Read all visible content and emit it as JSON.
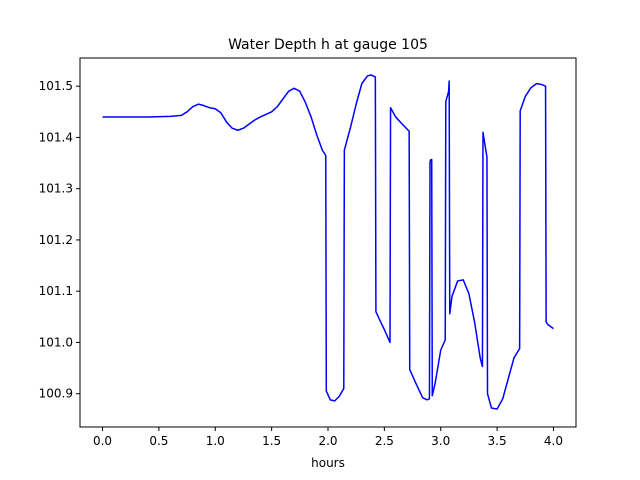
{
  "chart_data": {
    "type": "line",
    "title": "Water Depth h at gauge 105",
    "xlabel": "hours",
    "ylabel": "",
    "xlim": [
      -0.2,
      4.2
    ],
    "ylim": [
      100.835,
      101.555
    ],
    "xticks": [
      0.0,
      0.5,
      1.0,
      1.5,
      2.0,
      2.5,
      3.0,
      3.5,
      4.0
    ],
    "xtick_labels": [
      "0.0",
      "0.5",
      "1.0",
      "1.5",
      "2.0",
      "2.5",
      "3.0",
      "3.5",
      "4.0"
    ],
    "yticks": [
      100.9,
      101.0,
      101.1,
      101.2,
      101.3,
      101.4,
      101.5
    ],
    "ytick_labels": [
      "100.9",
      "101.0",
      "101.1",
      "101.2",
      "101.3",
      "101.4",
      "101.5"
    ],
    "grid": false,
    "series": [
      {
        "color": "#0000ff",
        "x": [
          0.0,
          0.2,
          0.4,
          0.6,
          0.7,
          0.75,
          0.8,
          0.85,
          0.9,
          0.95,
          1.0,
          1.05,
          1.1,
          1.15,
          1.2,
          1.25,
          1.3,
          1.35,
          1.4,
          1.5,
          1.55,
          1.6,
          1.65,
          1.7,
          1.75,
          1.8,
          1.85,
          1.9,
          1.95,
          1.98,
          1.985,
          2.02,
          2.06,
          2.1,
          2.14,
          2.145,
          2.2,
          2.25,
          2.3,
          2.35,
          2.38,
          2.4,
          2.42,
          2.425,
          2.45,
          2.5,
          2.55,
          2.555,
          2.6,
          2.65,
          2.72,
          2.725,
          2.78,
          2.84,
          2.88,
          2.9,
          2.905,
          2.91,
          2.92,
          2.925,
          2.95,
          3.0,
          3.04,
          3.045,
          3.07,
          3.075,
          3.08,
          3.1,
          3.15,
          3.2,
          3.25,
          3.3,
          3.35,
          3.37,
          3.375,
          3.4,
          3.41,
          3.415,
          3.45,
          3.5,
          3.55,
          3.6,
          3.65,
          3.7,
          3.705,
          3.75,
          3.8,
          3.85,
          3.9,
          3.93,
          3.935,
          3.95,
          4.0
        ],
        "y": [
          101.44,
          101.44,
          101.44,
          101.441,
          101.443,
          101.45,
          101.46,
          101.465,
          101.462,
          101.458,
          101.456,
          101.448,
          101.43,
          101.418,
          101.414,
          101.418,
          101.426,
          101.434,
          101.44,
          101.45,
          101.46,
          101.475,
          101.49,
          101.496,
          101.49,
          101.468,
          101.44,
          101.405,
          101.375,
          101.365,
          100.905,
          100.888,
          100.886,
          100.895,
          100.91,
          101.375,
          101.42,
          101.465,
          101.505,
          101.52,
          101.522,
          101.52,
          101.518,
          101.06,
          101.048,
          101.025,
          101.0,
          101.458,
          101.44,
          101.428,
          101.412,
          100.947,
          100.92,
          100.892,
          100.888,
          100.89,
          101.352,
          101.356,
          101.357,
          100.896,
          100.92,
          100.985,
          101.005,
          101.47,
          101.49,
          101.51,
          101.056,
          101.09,
          101.12,
          101.122,
          101.095,
          101.04,
          100.97,
          100.953,
          101.41,
          101.375,
          101.362,
          100.9,
          100.872,
          100.87,
          100.89,
          100.93,
          100.97,
          100.988,
          101.452,
          101.48,
          101.497,
          101.505,
          101.503,
          101.5,
          101.04,
          101.035,
          101.027
        ]
      }
    ]
  }
}
